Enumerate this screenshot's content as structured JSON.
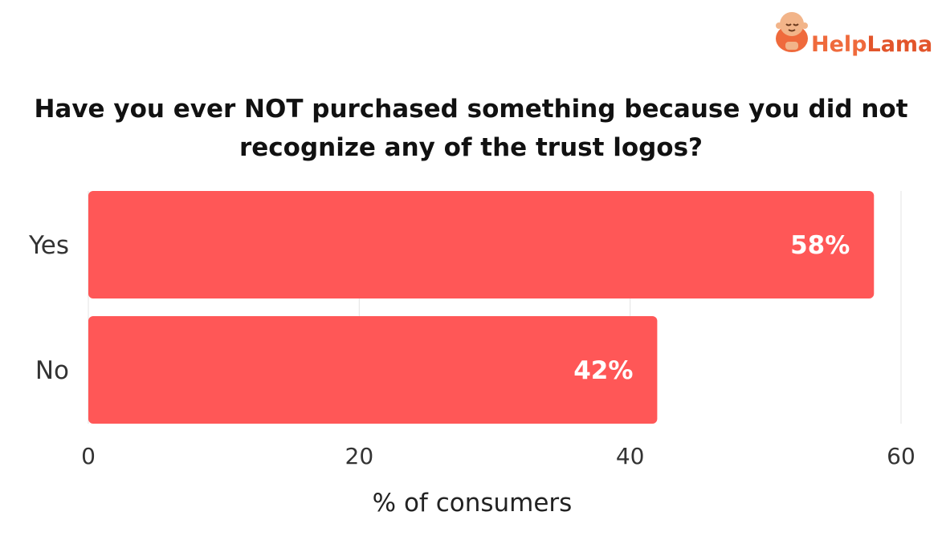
{
  "logo": {
    "text_help": "Help",
    "text_lama": "Lama",
    "color_help": "#ef6a3c",
    "color_lama": "#e2552b"
  },
  "chart_data": {
    "type": "bar",
    "orientation": "horizontal",
    "title": "Have you ever NOT purchased something because you did not recognize any of the trust logos?",
    "xlabel": "% of consumers",
    "ylabel": "",
    "categories": [
      "Yes",
      "No"
    ],
    "values": [
      58,
      42
    ],
    "data_labels": [
      "58%",
      "42%"
    ],
    "xlim": [
      0,
      60
    ],
    "xticks": [
      0,
      20,
      40,
      60
    ],
    "grid": true,
    "legend": "none",
    "bar_color": "#ff5757"
  }
}
